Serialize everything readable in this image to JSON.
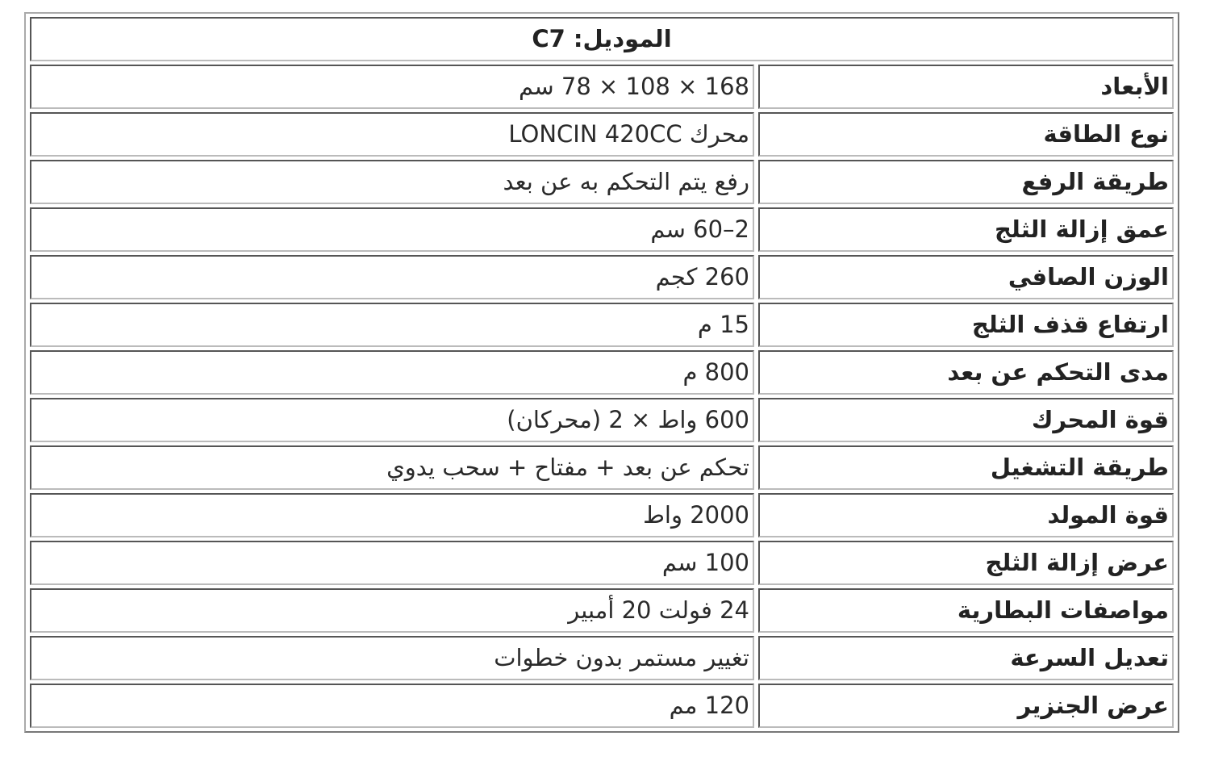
{
  "header": "الموديل: C7",
  "rows": [
    {
      "label": "الأبعاد",
      "value": "168 × 108 × 78 سم"
    },
    {
      "label": "نوع الطاقة",
      "value": "محرك LONCIN 420CC"
    },
    {
      "label": "طريقة الرفع",
      "value": "رفع يتم التحكم به عن بعد"
    },
    {
      "label": "عمق إزالة الثلج",
      "value": "2–60 سم"
    },
    {
      "label": "الوزن الصافي",
      "value": "260 كجم"
    },
    {
      "label": "ارتفاع قذف الثلج",
      "value": "15 م"
    },
    {
      "label": "مدى التحكم عن بعد",
      "value": "800 م"
    },
    {
      "label": "قوة المحرك",
      "value": "600 واط × 2 (محركان)"
    },
    {
      "label": "طريقة التشغيل",
      "value": "تحكم عن بعد + مفتاح + سحب يدوي"
    },
    {
      "label": "قوة المولد",
      "value": "2000 واط"
    },
    {
      "label": "عرض إزالة الثلج",
      "value": "100 سم"
    },
    {
      "label": "مواصفات البطارية",
      "value": "24 فولت 20 أمبير"
    },
    {
      "label": "تعديل السرعة",
      "value": "تغيير مستمر بدون خطوات"
    },
    {
      "label": "عرض الجنزير",
      "value": "120 مم"
    }
  ]
}
